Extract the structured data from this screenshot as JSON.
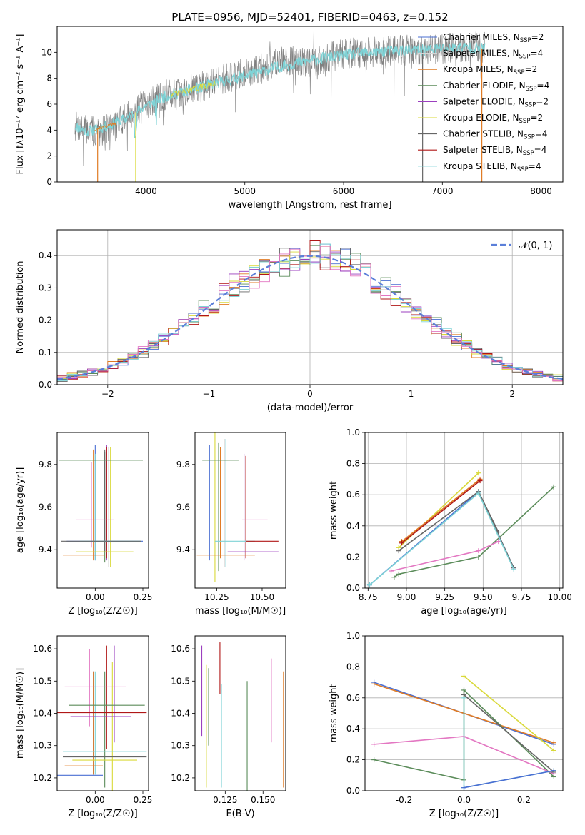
{
  "figure_title": "PLATE=0956, MJD=52401, FIBERID=0463, z=0.152",
  "colors": {
    "Chabrier MILES": "#4a6fd3",
    "Salpeter MILES": "#d5d5d5",
    "Kroupa MILES": "#e07b24",
    "Chabrier ELODIE": "#5b8c5a",
    "Salpeter ELODIE": "#9b3fbf",
    "Kroupa ELODIE": "#d9d93a",
    "Chabrier STELIB": "#666666",
    "Salpeter STELIB": "#b01717",
    "Kroupa STELIB": "#7fd3d6",
    "pink": "#e377c2",
    "gauss": "#5b7fd9",
    "data": "#808080"
  },
  "chart_data": [
    {
      "id": "spectrum",
      "type": "line",
      "xlabel": "wavelength [Angstrom, rest frame]",
      "ylabel": "Flux [fλ10⁻¹⁷ erg cm⁻² s⁻¹ A⁻¹]",
      "xlim": [
        3100,
        8220
      ],
      "ylim": [
        0,
        12
      ],
      "xticks": [
        4000,
        5000,
        6000,
        7000,
        8000
      ],
      "yticks": [
        0,
        2,
        4,
        6,
        8,
        10
      ],
      "legend_position": "top-right",
      "legend": [
        {
          "label": "Chabrier MILES, N",
          "sub": "SSP",
          "tail": "=2",
          "color_key": "Chabrier MILES"
        },
        {
          "label": "Salpeter MILES, N",
          "sub": "SSP",
          "tail": "=4",
          "color_key": "Salpeter MILES"
        },
        {
          "label": "Kroupa MILES, N",
          "sub": "SSP",
          "tail": "=2",
          "color_key": "Kroupa MILES"
        },
        {
          "label": "Chabrier ELODIE, N",
          "sub": "SSP",
          "tail": "=4",
          "color_key": "Chabrier ELODIE"
        },
        {
          "label": "Salpeter ELODIE, N",
          "sub": "SSP",
          "tail": "=2",
          "color_key": "Salpeter ELODIE"
        },
        {
          "label": "Kroupa ELODIE, N",
          "sub": "SSP",
          "tail": "=2",
          "color_key": "Kroupa ELODIE"
        },
        {
          "label": "Chabrier STELIB, N",
          "sub": "SSP",
          "tail": "=4",
          "color_key": "Chabrier STELIB"
        },
        {
          "label": "Salpeter STELIB, N",
          "sub": "SSP",
          "tail": "=4",
          "color_key": "Salpeter STELIB"
        },
        {
          "label": "Kroupa STELIB, N",
          "sub": "SSP",
          "tail": "=4",
          "color_key": "Kroupa STELIB"
        }
      ],
      "data_anchor_x": [
        3280,
        3500,
        3700,
        3900,
        4000,
        4200,
        4400,
        4600,
        4800,
        5000,
        5200,
        5400,
        5600,
        5800,
        6000,
        6200,
        6400,
        6600,
        6800,
        7000,
        7200,
        7400
      ],
      "data_anchor_y": [
        4.3,
        3.8,
        4.5,
        5.6,
        6.0,
        6.7,
        7.1,
        7.4,
        8.0,
        8.4,
        8.8,
        9.4,
        9.2,
        9.5,
        9.9,
        10.0,
        10.0,
        10.2,
        10.1,
        10.3,
        10.4,
        10.4
      ],
      "model_anchor_x": [
        3280,
        3400,
        3600,
        3800,
        4000,
        4200,
        4500,
        4800,
        5000,
        5300,
        5600,
        6000,
        6400,
        6800,
        7000,
        7200,
        7400
      ],
      "model_anchor_y": [
        4.3,
        3.9,
        4.3,
        4.9,
        5.9,
        6.6,
        7.2,
        7.8,
        8.2,
        8.8,
        9.3,
        9.8,
        10.1,
        10.2,
        10.3,
        10.4,
        10.3
      ]
    },
    {
      "id": "normed-distribution",
      "type": "step",
      "xlabel": "(data-model)/error",
      "ylabel": "Normed distribution",
      "xlim": [
        -2.5,
        2.5
      ],
      "ylim": [
        0,
        0.48
      ],
      "xticks": [
        -2,
        -1,
        0,
        1,
        2
      ],
      "yticks": [
        0.0,
        0.1,
        0.2,
        0.3,
        0.4
      ],
      "grid": true,
      "legend_position": "top-right",
      "gauss_label": "𝒩(0, 1)",
      "bin_width": 0.1
    },
    {
      "id": "z-vs-age",
      "type": "errorbar",
      "xlabel": "Z [log₁₀(Z/Z☉)]",
      "ylabel": "age  [log₁₀(age/yr)]",
      "xlim": [
        -0.2,
        0.28
      ],
      "ylim": [
        9.22,
        9.95
      ],
      "xticks": [
        0.0,
        0.25
      ],
      "yticks": [
        9.4,
        9.6,
        9.8
      ],
      "points": [
        {
          "x": 0.0,
          "xerr": 0.01,
          "y": 9.62,
          "yerr": 0.27,
          "color_key": "Chabrier MILES"
        },
        {
          "x": 0.07,
          "xerr": 0.01,
          "y": 9.6,
          "yerr": 0.28,
          "color_key": "Salpeter MILES"
        },
        {
          "x": -0.01,
          "xerr": 0.01,
          "y": 9.61,
          "yerr": 0.26,
          "color_key": "Kroupa MILES"
        },
        {
          "x": 0.05,
          "xerr": 0.01,
          "y": 9.6,
          "yerr": 0.26,
          "color_key": "Chabrier ELODIE"
        },
        {
          "x": 0.06,
          "xerr": 0.01,
          "y": 9.62,
          "yerr": 0.27,
          "color_key": "Salpeter ELODIE"
        },
        {
          "x": 0.08,
          "xerr": 0.01,
          "y": 9.6,
          "yerr": 0.28,
          "color_key": "Kroupa ELODIE"
        },
        {
          "x": 0.05,
          "xerr": 0.01,
          "y": 9.63,
          "yerr": 0.24,
          "color_key": "Chabrier STELIB"
        },
        {
          "x": 0.06,
          "xerr": 0.01,
          "y": 9.62,
          "yerr": 0.26,
          "color_key": "Salpeter STELIB"
        },
        {
          "x": 0.0,
          "xerr": 0.01,
          "y": 9.6,
          "yerr": 0.25,
          "color_key": "Kroupa STELIB"
        },
        {
          "x": -0.02,
          "xerr": 0.01,
          "y": 9.61,
          "yerr": 0.2,
          "color_key": "pink"
        },
        {
          "x": 0.03,
          "xerr": 0.22,
          "y": 9.82,
          "yerr": 0.0,
          "color_key": "Chabrier ELODIE"
        },
        {
          "x": 0.0,
          "xerr": 0.1,
          "y": 9.54,
          "yerr": 0.0,
          "color_key": "pink"
        },
        {
          "x": 0.05,
          "xerr": 0.2,
          "y": 9.44,
          "yerr": 0.0,
          "color_key": "Chabrier MILES"
        },
        {
          "x": 0.08,
          "xerr": 0.16,
          "y": 9.44,
          "yerr": 0.0,
          "color_key": "Kroupa STELIB"
        },
        {
          "x": 0.03,
          "xerr": 0.21,
          "y": 9.44,
          "yerr": 0.0,
          "color_key": "Chabrier STELIB"
        },
        {
          "x": 0.05,
          "xerr": 0.15,
          "y": 9.39,
          "yerr": 0.0,
          "color_key": "Kroupa ELODIE"
        },
        {
          "x": -0.06,
          "xerr": 0.11,
          "y": 9.375,
          "yerr": 0.0,
          "color_key": "Kroupa MILES"
        }
      ]
    },
    {
      "id": "mass-vs-age",
      "type": "errorbar",
      "xlabel": "mass [log₁₀(M/M☉)]",
      "ylabel": "",
      "xlim": [
        10.13,
        10.63
      ],
      "ylim": [
        9.22,
        9.95
      ],
      "xticks": [
        10.25,
        10.5
      ],
      "yticks": [
        9.4,
        9.6,
        9.8
      ],
      "points": [
        {
          "x": 10.21,
          "xerr": 0.005,
          "y": 9.62,
          "yerr": 0.27,
          "color_key": "Chabrier MILES"
        },
        {
          "x": 10.27,
          "xerr": 0.005,
          "y": 9.62,
          "yerr": 0.26,
          "color_key": "Kroupa MILES"
        },
        {
          "x": 10.26,
          "xerr": 0.005,
          "y": 9.6,
          "yerr": 0.3,
          "color_key": "Chabrier ELODIE"
        },
        {
          "x": 10.4,
          "xerr": 0.005,
          "y": 9.6,
          "yerr": 0.25,
          "color_key": "Salpeter ELODIE"
        },
        {
          "x": 10.24,
          "xerr": 0.005,
          "y": 9.6,
          "yerr": 0.35,
          "color_key": "Kroupa ELODIE"
        },
        {
          "x": 10.3,
          "xerr": 0.005,
          "y": 9.62,
          "yerr": 0.3,
          "color_key": "Kroupa STELIB"
        },
        {
          "x": 10.41,
          "xerr": 0.005,
          "y": 9.6,
          "yerr": 0.24,
          "color_key": "Salpeter STELIB"
        },
        {
          "x": 10.29,
          "xerr": 0.005,
          "y": 9.62,
          "yerr": 0.3,
          "color_key": "Chabrier STELIB"
        },
        {
          "x": 10.27,
          "xerr": 0.1,
          "y": 9.82,
          "yerr": 0.0,
          "color_key": "Chabrier ELODIE"
        },
        {
          "x": 10.46,
          "xerr": 0.07,
          "y": 9.54,
          "yerr": 0.0,
          "color_key": "pink"
        },
        {
          "x": 10.35,
          "xerr": 0.11,
          "y": 9.44,
          "yerr": 0.0,
          "color_key": "Kroupa STELIB"
        },
        {
          "x": 10.5,
          "xerr": 0.09,
          "y": 9.44,
          "yerr": 0.0,
          "color_key": "Salpeter STELIB"
        },
        {
          "x": 10.45,
          "xerr": 0.14,
          "y": 9.39,
          "yerr": 0.0,
          "color_key": "Salpeter ELODIE"
        },
        {
          "x": 10.3,
          "xerr": 0.16,
          "y": 9.375,
          "yerr": 0.0,
          "color_key": "Kroupa MILES"
        }
      ]
    },
    {
      "id": "mass-weight-vs-age",
      "type": "line",
      "xlabel": "age  [log₁₀(age/yr)]",
      "ylabel": "mass weight",
      "xlim": [
        8.73,
        10.02
      ],
      "ylim": [
        0,
        1
      ],
      "xticks": [
        8.75,
        9.0,
        9.25,
        9.5,
        9.75,
        10.0
      ],
      "yticks": [
        0.0,
        0.2,
        0.4,
        0.6,
        0.8,
        1.0
      ],
      "grid": true,
      "series": [
        {
          "color_key": "Chabrier ELODIE",
          "x": [
            8.92,
            8.95,
            9.47,
            9.96
          ],
          "y": [
            0.07,
            0.09,
            0.2,
            0.65
          ]
        },
        {
          "color_key": "pink",
          "x": [
            8.9,
            9.47,
            9.6
          ],
          "y": [
            0.11,
            0.24,
            0.3
          ]
        },
        {
          "color_key": "Chabrier MILES",
          "x": [
            8.76,
            9.47,
            9.7
          ],
          "y": [
            0.02,
            0.62,
            0.13
          ]
        },
        {
          "color_key": "Chabrier STELIB",
          "x": [
            8.95,
            9.47,
            9.7
          ],
          "y": [
            0.24,
            0.62,
            0.13
          ]
        },
        {
          "color_key": "Chabrier STELIB",
          "x": [
            9.47,
            9.6
          ],
          "y": [
            0.62,
            0.36
          ]
        },
        {
          "color_key": "Kroupa STELIB",
          "x": [
            8.76,
            9.47,
            9.7
          ],
          "y": [
            0.02,
            0.61,
            0.12
          ]
        },
        {
          "color_key": "Kroupa ELODIE",
          "x": [
            8.95,
            9.47
          ],
          "y": [
            0.26,
            0.74
          ]
        },
        {
          "color_key": "Kroupa MILES",
          "x": [
            8.97,
            9.48
          ],
          "y": [
            0.3,
            0.7
          ]
        },
        {
          "color_key": "Salpeter STELIB",
          "x": [
            8.97,
            9.48
          ],
          "y": [
            0.29,
            0.69
          ]
        }
      ]
    },
    {
      "id": "z-vs-mass",
      "type": "errorbar",
      "xlabel": "Z [log₁₀(Z/Z☉)]",
      "ylabel": "mass [log₁₀(M/M☉)]",
      "xlim": [
        -0.2,
        0.28
      ],
      "ylim": [
        10.16,
        10.64
      ],
      "xticks": [
        0.0,
        0.25
      ],
      "yticks": [
        10.2,
        10.3,
        10.4,
        10.5,
        10.6
      ],
      "points": [
        {
          "x": -0.01,
          "xerr": 0.005,
          "y": 10.37,
          "yerr": 0.16,
          "color_key": "Chabrier MILES"
        },
        {
          "x": -0.01,
          "xerr": 0.005,
          "y": 10.37,
          "yerr": 0.16,
          "color_key": "Kroupa MILES"
        },
        {
          "x": 0.0,
          "xerr": 0.005,
          "y": 10.37,
          "yerr": 0.16,
          "color_key": "Kroupa STELIB"
        },
        {
          "x": 0.06,
          "xerr": 0.005,
          "y": 10.45,
          "yerr": 0.16,
          "color_key": "Salpeter STELIB"
        },
        {
          "x": 0.05,
          "xerr": 0.005,
          "y": 10.35,
          "yerr": 0.18,
          "color_key": "Chabrier ELODIE"
        },
        {
          "x": 0.1,
          "xerr": 0.005,
          "y": 10.46,
          "yerr": 0.15,
          "color_key": "Salpeter ELODIE"
        },
        {
          "x": 0.09,
          "xerr": 0.005,
          "y": 10.36,
          "yerr": 0.2,
          "color_key": "Kroupa ELODIE"
        },
        {
          "x": -0.03,
          "xerr": 0.005,
          "y": 10.48,
          "yerr": 0.12,
          "color_key": "pink"
        },
        {
          "x": 0.0,
          "xerr": 0.16,
          "y": 10.482,
          "yerr": 0.0,
          "color_key": "pink"
        },
        {
          "x": 0.06,
          "xerr": 0.2,
          "y": 10.425,
          "yerr": 0.0,
          "color_key": "Chabrier ELODIE"
        },
        {
          "x": 0.03,
          "xerr": 0.24,
          "y": 10.402,
          "yerr": 0.0,
          "color_key": "Salpeter STELIB"
        },
        {
          "x": 0.03,
          "xerr": 0.16,
          "y": 10.39,
          "yerr": 0.0,
          "color_key": "Salpeter ELODIE"
        },
        {
          "x": 0.05,
          "xerr": 0.22,
          "y": 10.282,
          "yerr": 0.0,
          "color_key": "Kroupa STELIB"
        },
        {
          "x": 0.05,
          "xerr": 0.22,
          "y": 10.265,
          "yerr": 0.0,
          "color_key": "Chabrier STELIB"
        },
        {
          "x": 0.05,
          "xerr": 0.17,
          "y": 10.255,
          "yerr": 0.0,
          "color_key": "Kroupa ELODIE"
        },
        {
          "x": -0.06,
          "xerr": 0.1,
          "y": 10.237,
          "yerr": 0.0,
          "color_key": "Kroupa MILES"
        },
        {
          "x": -0.08,
          "xerr": 0.12,
          "y": 10.208,
          "yerr": 0.0,
          "color_key": "Chabrier MILES"
        }
      ]
    },
    {
      "id": "ebv-vs-mass",
      "type": "errorbar",
      "xlabel": "E(B-V)",
      "ylabel": "",
      "xlim": [
        0.105,
        0.165
      ],
      "ylim": [
        10.16,
        10.64
      ],
      "xticks": [
        0.125,
        0.15
      ],
      "yticks": [
        10.2,
        10.3,
        10.4,
        10.5,
        10.6
      ],
      "points": [
        {
          "x": 0.1095,
          "xerr": 0.0,
          "y": 10.47,
          "yerr": 0.14,
          "color_key": "Salpeter ELODIE"
        },
        {
          "x": 0.1125,
          "xerr": 0.0,
          "y": 10.36,
          "yerr": 0.19,
          "color_key": "Kroupa ELODIE"
        },
        {
          "x": 0.114,
          "xerr": 0.0,
          "y": 10.42,
          "yerr": 0.12,
          "color_key": "Chabrier ELODIE"
        },
        {
          "x": 0.1215,
          "xerr": 0.0,
          "y": 10.54,
          "yerr": 0.08,
          "color_key": "Salpeter STELIB"
        },
        {
          "x": 0.1225,
          "xerr": 0.0,
          "y": 10.33,
          "yerr": 0.16,
          "color_key": "Kroupa STELIB"
        },
        {
          "x": 0.1395,
          "xerr": 0.0,
          "y": 10.33,
          "yerr": 0.17,
          "color_key": "Chabrier ELODIE"
        },
        {
          "x": 0.1555,
          "xerr": 0.0,
          "y": 10.44,
          "yerr": 0.13,
          "color_key": "pink"
        },
        {
          "x": 0.1635,
          "xerr": 0.0,
          "y": 10.35,
          "yerr": 0.18,
          "color_key": "Kroupa MILES"
        }
      ]
    },
    {
      "id": "mass-weight-vs-z",
      "type": "line",
      "xlabel": "Z [log₁₀(Z/Z☉)]",
      "ylabel": "mass weight",
      "xlim": [
        -0.33,
        0.33
      ],
      "ylim": [
        0,
        1
      ],
      "xticks": [
        -0.2,
        0.0,
        0.2
      ],
      "yticks": [
        0.0,
        0.2,
        0.4,
        0.6,
        0.8,
        1.0
      ],
      "grid": true,
      "series": [
        {
          "color_key": "Chabrier MILES",
          "x": [
            -0.3,
            0.3
          ],
          "y": [
            0.7,
            0.3
          ]
        },
        {
          "color_key": "Kroupa MILES",
          "x": [
            -0.3,
            0.3
          ],
          "y": [
            0.69,
            0.31
          ]
        },
        {
          "color_key": "Kroupa ELODIE",
          "x": [
            0.0,
            0.3
          ],
          "y": [
            0.74,
            0.26
          ]
        },
        {
          "color_key": "Chabrier ELODIE",
          "x": [
            -0.3,
            0.0,
            0.0,
            0.3
          ],
          "y": [
            0.2,
            0.07,
            0.65,
            0.09
          ]
        },
        {
          "color_key": "pink",
          "x": [
            -0.3,
            0.0,
            0.3
          ],
          "y": [
            0.3,
            0.35,
            0.11
          ]
        },
        {
          "color_key": "Chabrier STELIB",
          "x": [
            0.0,
            0.3
          ],
          "y": [
            0.62,
            0.12
          ]
        },
        {
          "color_key": "Kroupa STELIB",
          "x": [
            0.0,
            0.0,
            0.3
          ],
          "y": [
            0.6,
            0.02,
            0.13
          ]
        },
        {
          "color_key": "Chabrier MILES",
          "x": [
            0.0,
            0.3
          ],
          "y": [
            0.02,
            0.13
          ]
        }
      ]
    }
  ]
}
